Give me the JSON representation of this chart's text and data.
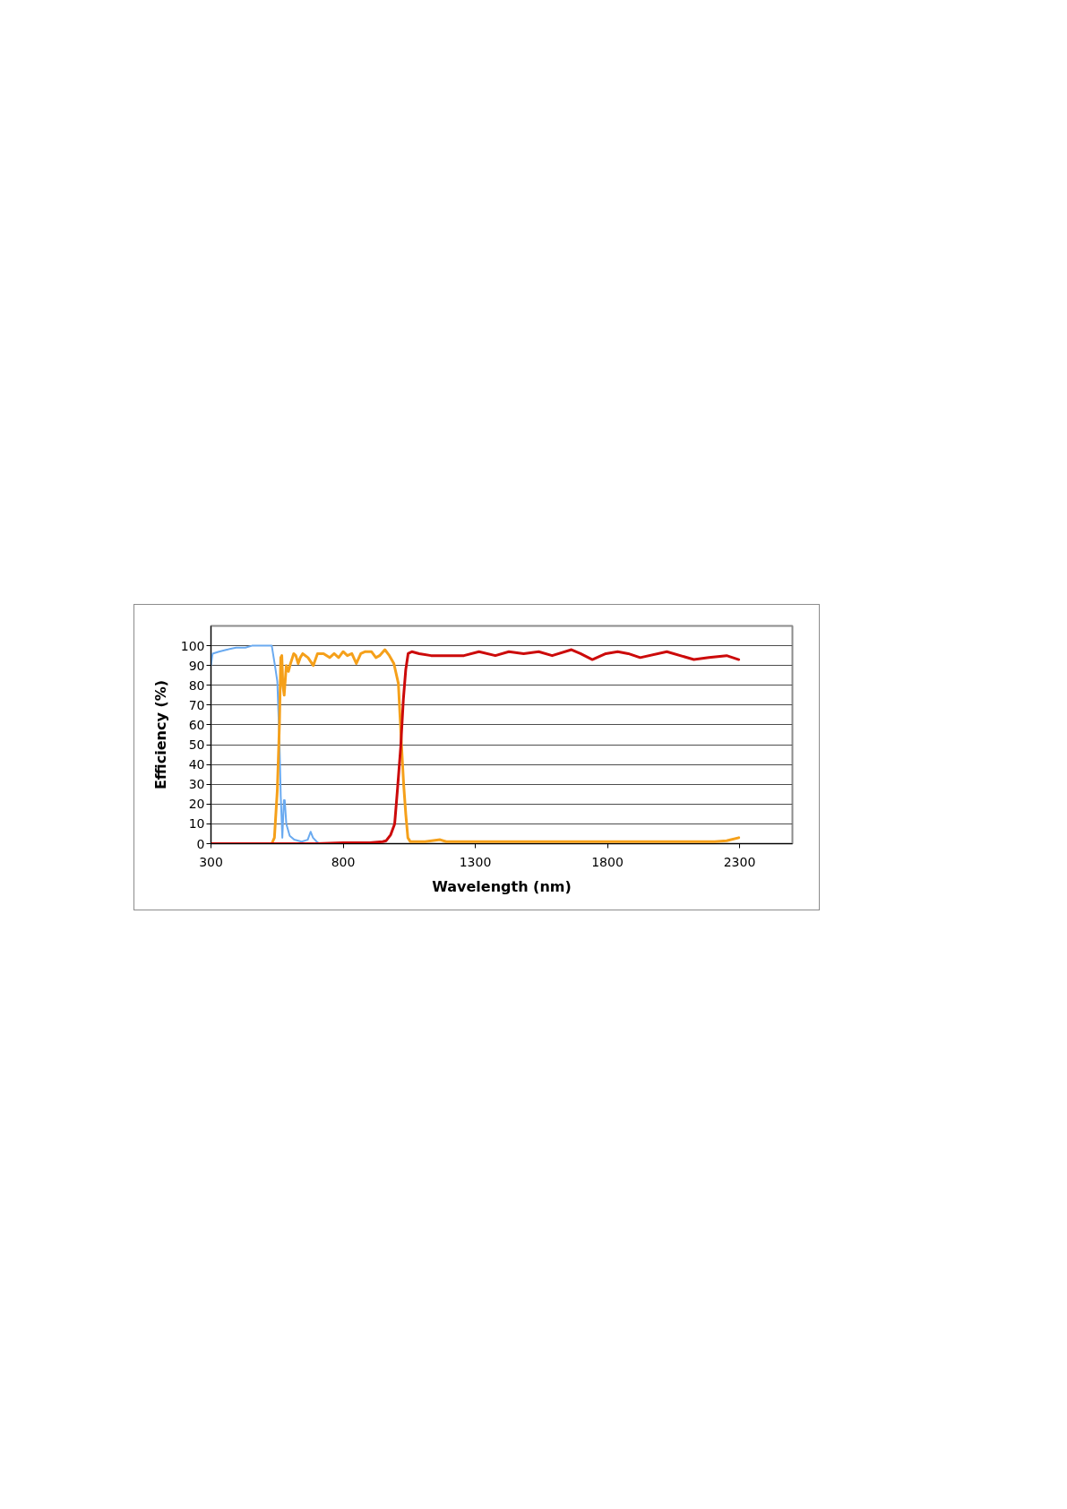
{
  "chart_data": {
    "type": "line",
    "xlabel": "Wavelength (nm)",
    "ylabel": "Efficiency (%)",
    "xlim": [
      300,
      2500
    ],
    "xticks": [
      300,
      800,
      1300,
      1800,
      2300
    ],
    "ylim": [
      0,
      110
    ],
    "yticks": [
      0,
      10,
      20,
      30,
      40,
      50,
      60,
      70,
      80,
      90,
      100
    ],
    "grid": "y",
    "series": [
      {
        "color": "#6aaaf0",
        "x": [
          300,
          306,
          330,
          360,
          395,
          430,
          455,
          500,
          530,
          542,
          551,
          559,
          564,
          570,
          576,
          579,
          585,
          598,
          615,
          643,
          666,
          677,
          686,
          700,
          710
        ],
        "values": [
          90,
          96,
          97,
          98,
          99,
          99,
          100,
          100,
          100,
          90,
          82,
          52,
          24,
          3,
          22,
          22,
          10,
          4,
          2,
          1,
          2,
          6,
          3,
          1,
          0
        ]
      },
      {
        "color": "#f5a01a",
        "x": [
          530,
          540,
          551,
          559,
          564,
          568,
          572,
          577,
          585,
          593,
          601,
          613,
          621,
          630,
          638,
          647,
          667,
          687,
          703,
          726,
          749,
          766,
          783,
          800,
          816,
          833,
          850,
          867,
          884,
          907,
          924,
          938,
          958,
          975,
          992,
          1009,
          1020,
          1029,
          1037,
          1045,
          1054,
          1110,
          1167,
          1190,
          1260,
          1359,
          1500,
          1700,
          1879,
          2000,
          2206,
          2251,
          2297
        ],
        "values": [
          0,
          3,
          27,
          60,
          94,
          95,
          80,
          75,
          90,
          87,
          91,
          96,
          95,
          91,
          94,
          96,
          94,
          90,
          96,
          96,
          94,
          96,
          94,
          97,
          95,
          96,
          91,
          96,
          97,
          97,
          94,
          95,
          98,
          95,
          91,
          81,
          52,
          30,
          15,
          3,
          1,
          1,
          2,
          1,
          1,
          1,
          1,
          1,
          1,
          1,
          1,
          1.5,
          3
        ]
      },
      {
        "color": "#cc0a0a",
        "x": [
          300,
          700,
          800,
          900,
          950,
          963,
          980,
          995,
          1006,
          1018,
          1028,
          1037,
          1046,
          1060,
          1088,
          1133,
          1167,
          1212,
          1257,
          1314,
          1376,
          1427,
          1483,
          1540,
          1591,
          1664,
          1698,
          1743,
          1794,
          1839,
          1879,
          1924,
          2025,
          2127,
          2184,
          2251,
          2297
        ],
        "values": [
          0,
          0,
          0.5,
          0.5,
          1,
          1.5,
          4.5,
          10,
          28,
          49,
          73,
          88,
          96,
          97,
          96,
          95,
          95,
          95,
          95,
          97,
          95,
          97,
          96,
          97,
          95,
          98,
          96,
          93,
          96,
          97,
          96,
          94,
          97,
          93,
          94,
          95,
          93
        ]
      }
    ]
  }
}
